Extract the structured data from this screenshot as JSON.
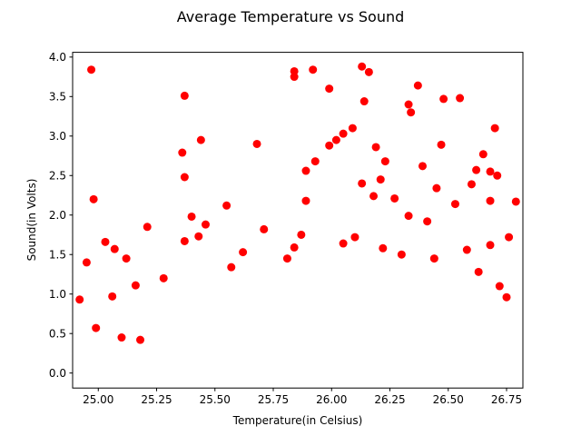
{
  "chart_data": {
    "type": "scatter",
    "title": "Average Temperature vs Sound",
    "xlabel": "Temperature(in Celsius)",
    "ylabel": "Sound(in Volts)",
    "xlim": [
      24.89,
      26.82
    ],
    "ylim": [
      -0.19,
      4.06
    ],
    "xticks": [
      25.0,
      25.25,
      25.5,
      25.75,
      26.0,
      26.25,
      26.5,
      26.75
    ],
    "xtick_labels": [
      "25.00",
      "25.25",
      "25.50",
      "25.75",
      "26.00",
      "26.25",
      "26.50",
      "26.75"
    ],
    "yticks": [
      0.0,
      0.5,
      1.0,
      1.5,
      2.0,
      2.5,
      3.0,
      3.5,
      4.0
    ],
    "ytick_labels": [
      "0.0",
      "0.5",
      "1.0",
      "1.5",
      "2.0",
      "2.5",
      "3.0",
      "3.5",
      "4.0"
    ],
    "grid": false,
    "marker_color": "#ff0000",
    "series": [
      {
        "x": [
          24.97,
          24.98,
          25.37,
          25.36,
          25.44,
          25.37,
          25.68,
          25.84,
          25.84,
          25.92,
          25.99,
          26.13,
          26.16,
          26.14,
          26.37,
          26.33,
          26.48,
          26.55,
          26.34,
          26.47,
          26.7,
          26.05,
          26.02,
          26.09,
          26.19,
          26.23,
          26.21,
          26.65,
          26.68,
          26.6,
          25.89,
          25.93,
          25.99,
          25.89,
          25.87,
          26.39,
          26.45,
          26.62,
          26.71,
          26.68,
          26.79,
          25.55,
          25.71,
          25.21,
          25.03,
          25.07,
          25.12,
          24.95,
          24.92,
          25.43,
          25.46,
          25.37,
          25.4,
          26.13,
          26.18,
          26.27,
          26.33,
          26.41,
          26.53,
          26.76,
          26.68,
          25.84,
          25.81,
          25.62,
          25.57,
          25.28,
          25.16,
          25.06,
          24.99,
          25.1,
          25.18,
          26.05,
          26.1,
          26.22,
          26.3,
          26.44,
          26.58,
          26.63,
          26.72,
          26.75
        ],
        "y": [
          3.84,
          2.2,
          3.51,
          2.79,
          2.95,
          2.48,
          2.9,
          3.82,
          3.75,
          3.84,
          3.6,
          3.88,
          3.81,
          3.44,
          3.64,
          3.4,
          3.47,
          3.48,
          3.3,
          2.89,
          3.1,
          3.03,
          2.95,
          3.1,
          2.86,
          2.68,
          2.45,
          2.77,
          2.55,
          2.39,
          2.56,
          2.68,
          2.88,
          2.18,
          1.75,
          2.62,
          2.34,
          2.57,
          2.5,
          2.18,
          2.17,
          2.12,
          1.82,
          1.85,
          1.66,
          1.57,
          1.45,
          1.4,
          0.93,
          1.73,
          1.88,
          1.67,
          1.98,
          2.4,
          2.24,
          2.21,
          1.99,
          1.92,
          2.14,
          1.72,
          1.62,
          1.59,
          1.45,
          1.53,
          1.34,
          1.2,
          1.11,
          0.97,
          0.57,
          0.45,
          0.42,
          1.64,
          1.72,
          1.58,
          1.5,
          1.45,
          1.56,
          1.28,
          1.1,
          0.96
        ]
      }
    ]
  }
}
